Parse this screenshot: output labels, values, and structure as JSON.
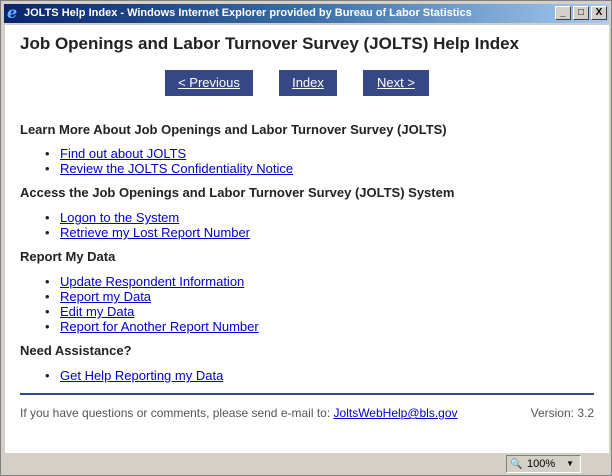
{
  "window": {
    "title": "JOLTS Help Index - Windows Internet Explorer provided by Bureau of Labor Statistics",
    "icon": "ie-icon",
    "controls": [
      "_",
      "□",
      "X"
    ]
  },
  "page": {
    "title": "Job Openings and Labor Turnover Survey (JOLTS) Help Index"
  },
  "nav": {
    "previous": "< Previous",
    "index": "Index",
    "next": "Next >",
    "button_color": "#354784"
  },
  "sections": [
    {
      "heading": "Learn More About Job Openings and Labor Turnover Survey (JOLTS)",
      "links": [
        "Find out about JOLTS",
        "Review the JOLTS Confidentiality Notice"
      ]
    },
    {
      "heading": "Access the Job Openings and Labor Turnover Survey (JOLTS) System",
      "links": [
        "Logon to the System",
        "Retrieve my Lost Report Number"
      ]
    },
    {
      "heading": "Report My Data",
      "links": [
        "Update Respondent Information",
        "Report my Data",
        "Edit my Data",
        "Report for Another Report Number"
      ]
    },
    {
      "heading": "Need Assistance?",
      "links": [
        "Get Help Reporting my Data"
      ]
    }
  ],
  "footer": {
    "text": "If you have questions or comments, please send e-mail to:",
    "email": "JoltsWebHelp@bls.gov",
    "version": "Version: 3.2"
  },
  "status": {
    "zoom": "100%"
  }
}
